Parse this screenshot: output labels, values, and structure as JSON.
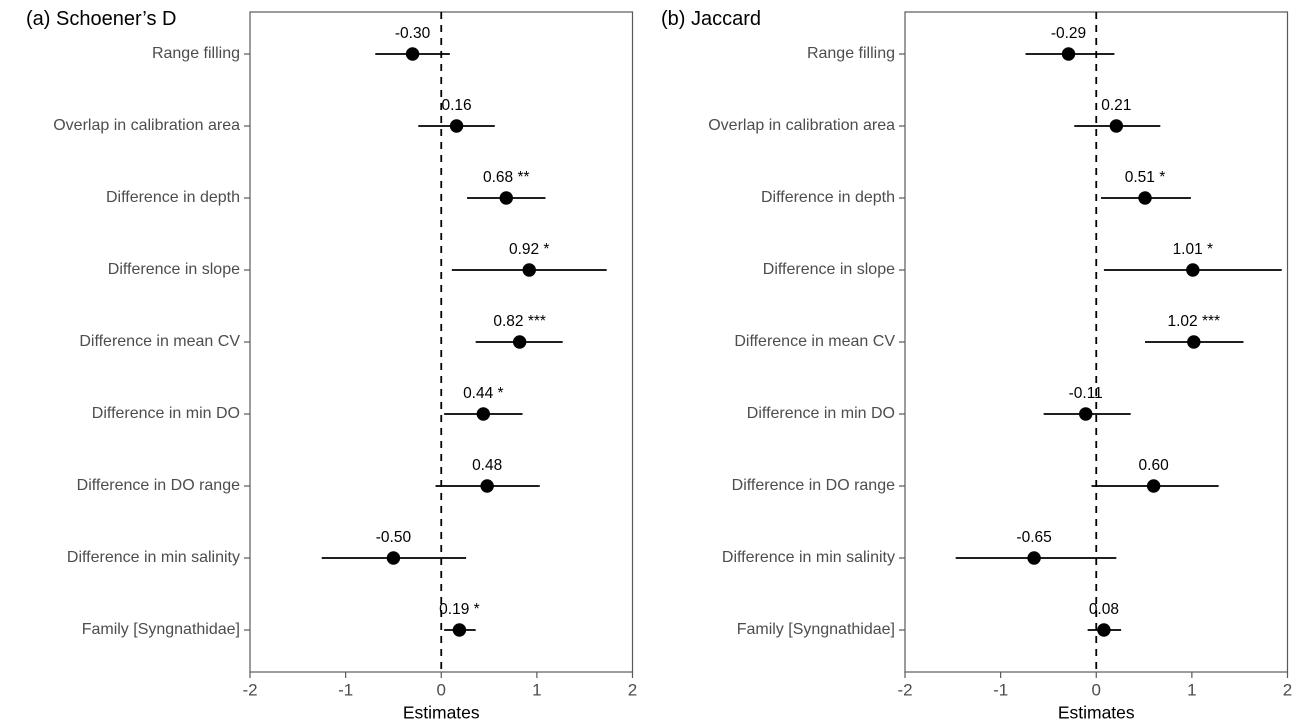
{
  "chart_data": [
    {
      "type": "scatter",
      "subtype": "forest-plot",
      "title": "(a) Schoener’s D",
      "xlabel": "Estimates",
      "xlim": [
        -2,
        2
      ],
      "x_ticks": [
        "-2",
        "-1",
        "0",
        "1",
        "2"
      ],
      "x_tick_values": [
        -2,
        -1,
        0,
        1,
        2
      ],
      "vline": 0,
      "grid": "off",
      "legend": "none",
      "categories": [
        "Range filling",
        "Overlap in calibration area",
        "Difference in depth",
        "Difference in slope",
        "Difference in mean CV",
        "Difference in min DO",
        "Difference in DO range",
        "Difference in min salinity",
        "Family [Syngnathidae]"
      ],
      "estimates": [
        -0.3,
        0.16,
        0.68,
        0.92,
        0.82,
        0.44,
        0.48,
        -0.5,
        0.19
      ],
      "ci_low": [
        -0.69,
        -0.24,
        0.27,
        0.11,
        0.36,
        0.03,
        -0.06,
        -1.25,
        0.03
      ],
      "ci_high": [
        0.09,
        0.56,
        1.09,
        1.73,
        1.27,
        0.85,
        1.03,
        0.26,
        0.36
      ],
      "significance": [
        "",
        "",
        "**",
        "*",
        "***",
        "*",
        "",
        "",
        "*"
      ],
      "point_labels": [
        "-0.30",
        "0.16",
        "0.68 **",
        "0.92 *",
        "0.82 ***",
        "0.44 *",
        "0.48",
        "-0.50",
        "0.19 *"
      ],
      "colors": {
        "point": "#000000",
        "ci_line": "#000000",
        "zero_line": "#000000",
        "border": "#595959",
        "axis_text": "#4d4d4d",
        "label_text": "#000000"
      }
    },
    {
      "type": "scatter",
      "subtype": "forest-plot",
      "title": "(b) Jaccard",
      "xlabel": "Estimates",
      "xlim": [
        -2,
        2
      ],
      "x_ticks": [
        "-2",
        "-1",
        "0",
        "1",
        "2"
      ],
      "x_tick_values": [
        -2,
        -1,
        0,
        1,
        2
      ],
      "vline": 0,
      "grid": "off",
      "legend": "none",
      "categories": [
        "Range filling",
        "Overlap in calibration area",
        "Difference in depth",
        "Difference in slope",
        "Difference in mean CV",
        "Difference in min DO",
        "Difference in DO range",
        "Difference in min salinity",
        "Family [Syngnathidae]"
      ],
      "estimates": [
        -0.29,
        0.21,
        0.51,
        1.01,
        1.02,
        -0.11,
        0.6,
        -0.65,
        0.08
      ],
      "ci_low": [
        -0.74,
        -0.23,
        0.05,
        0.08,
        0.51,
        -0.55,
        -0.05,
        -1.47,
        -0.09
      ],
      "ci_high": [
        0.19,
        0.67,
        0.99,
        1.94,
        1.54,
        0.36,
        1.28,
        0.21,
        0.26
      ],
      "significance": [
        "",
        "",
        "*",
        "*",
        "***",
        "",
        "",
        "",
        ""
      ],
      "point_labels": [
        "-0.29",
        "0.21",
        "0.51 *",
        "1.01 *",
        "1.02 ***",
        "-0.11",
        "0.60",
        "-0.65",
        "0.08"
      ],
      "colors": {
        "point": "#000000",
        "ci_line": "#000000",
        "zero_line": "#000000",
        "border": "#595959",
        "axis_text": "#4d4d4d",
        "label_text": "#000000"
      }
    }
  ]
}
